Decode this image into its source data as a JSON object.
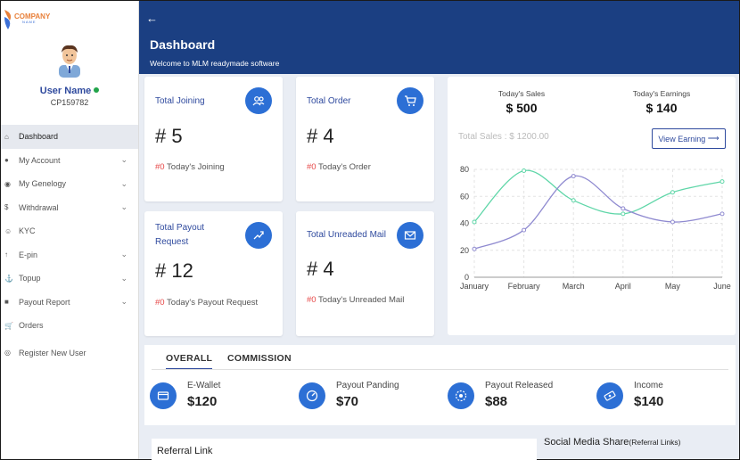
{
  "brand": {
    "name": "COMPANY",
    "sub": "NAME"
  },
  "user": {
    "name": "User Name",
    "id": "CP159782"
  },
  "menu": [
    {
      "label": "Dashboard",
      "icon": "home-icon",
      "chevron": false,
      "active": true
    },
    {
      "label": "My Account",
      "icon": "users-icon",
      "chevron": true
    },
    {
      "label": "My Genelogy",
      "icon": "tree-icon",
      "chevron": true
    },
    {
      "label": "Withdrawal",
      "icon": "dollar-icon",
      "chevron": true
    },
    {
      "label": "KYC",
      "icon": "user-check-icon",
      "chevron": false
    },
    {
      "label": "E-pin",
      "icon": "pin-icon",
      "chevron": true
    },
    {
      "label": "Topup",
      "icon": "ship-icon",
      "chevron": true
    },
    {
      "label": "Payout Report",
      "icon": "report-icon",
      "chevron": true
    },
    {
      "label": "Orders",
      "icon": "cart-icon",
      "chevron": false
    },
    {
      "label": "Register New User",
      "icon": "register-icon",
      "chevron": false
    }
  ],
  "header": {
    "title": "Dashboard",
    "subtitle": "Welcome to MLM readymade software"
  },
  "cards": {
    "joining": {
      "title": "Total Joining",
      "value": "# 5",
      "sub_count": "#0",
      "sub_text": "Today's Joining",
      "icon": "users-icon"
    },
    "order": {
      "title": "Total Order",
      "value": "# 4",
      "sub_count": "#0",
      "sub_text": "Today's Order",
      "icon": "cart-icon"
    },
    "payout": {
      "title": "Total Payout Request",
      "value": "# 12",
      "sub_count": "#0",
      "sub_text": "Today's Payout Request",
      "icon": "payout-icon"
    },
    "mail": {
      "title": "Total Unreaded Mail",
      "value": "# 4",
      "sub_count": "#0",
      "sub_text": "Today's Unreaded Mail",
      "icon": "mail-icon"
    }
  },
  "sales": {
    "today_sales_label": "Today's Sales",
    "today_sales": "$ 500",
    "today_earnings_label": "Today's Earnings",
    "today_earnings": "$ 140",
    "total_sales": "Total Sales : $ 1200.00",
    "view_button": "View Earning"
  },
  "chart_data": {
    "type": "line",
    "categories": [
      "January",
      "February",
      "March",
      "April",
      "May",
      "June"
    ],
    "series": [
      {
        "values": [
          41,
          79,
          57,
          47,
          63,
          71
        ],
        "color": "#5fd6a8"
      },
      {
        "values": [
          21,
          35,
          75,
          51,
          41,
          47
        ],
        "color": "#8f8ad0"
      }
    ],
    "ylim": [
      0,
      80
    ],
    "yticks": [
      0,
      20,
      40,
      60,
      80
    ],
    "grid": true
  },
  "tabs": [
    "OVERALL",
    "COMMISSION"
  ],
  "stats": [
    {
      "label": "E-Wallet",
      "value": "$120",
      "icon": "wallet-icon"
    },
    {
      "label": "Payout Panding",
      "value": "$70",
      "icon": "gauge-icon"
    },
    {
      "label": "Payout Released",
      "value": "$88",
      "icon": "release-icon"
    },
    {
      "label": "Income",
      "value": "$140",
      "icon": "money-icon"
    }
  ],
  "referral": {
    "title": "Referral Link"
  },
  "social": {
    "title": "Social Media Share",
    "note": "(Referral Links)"
  }
}
